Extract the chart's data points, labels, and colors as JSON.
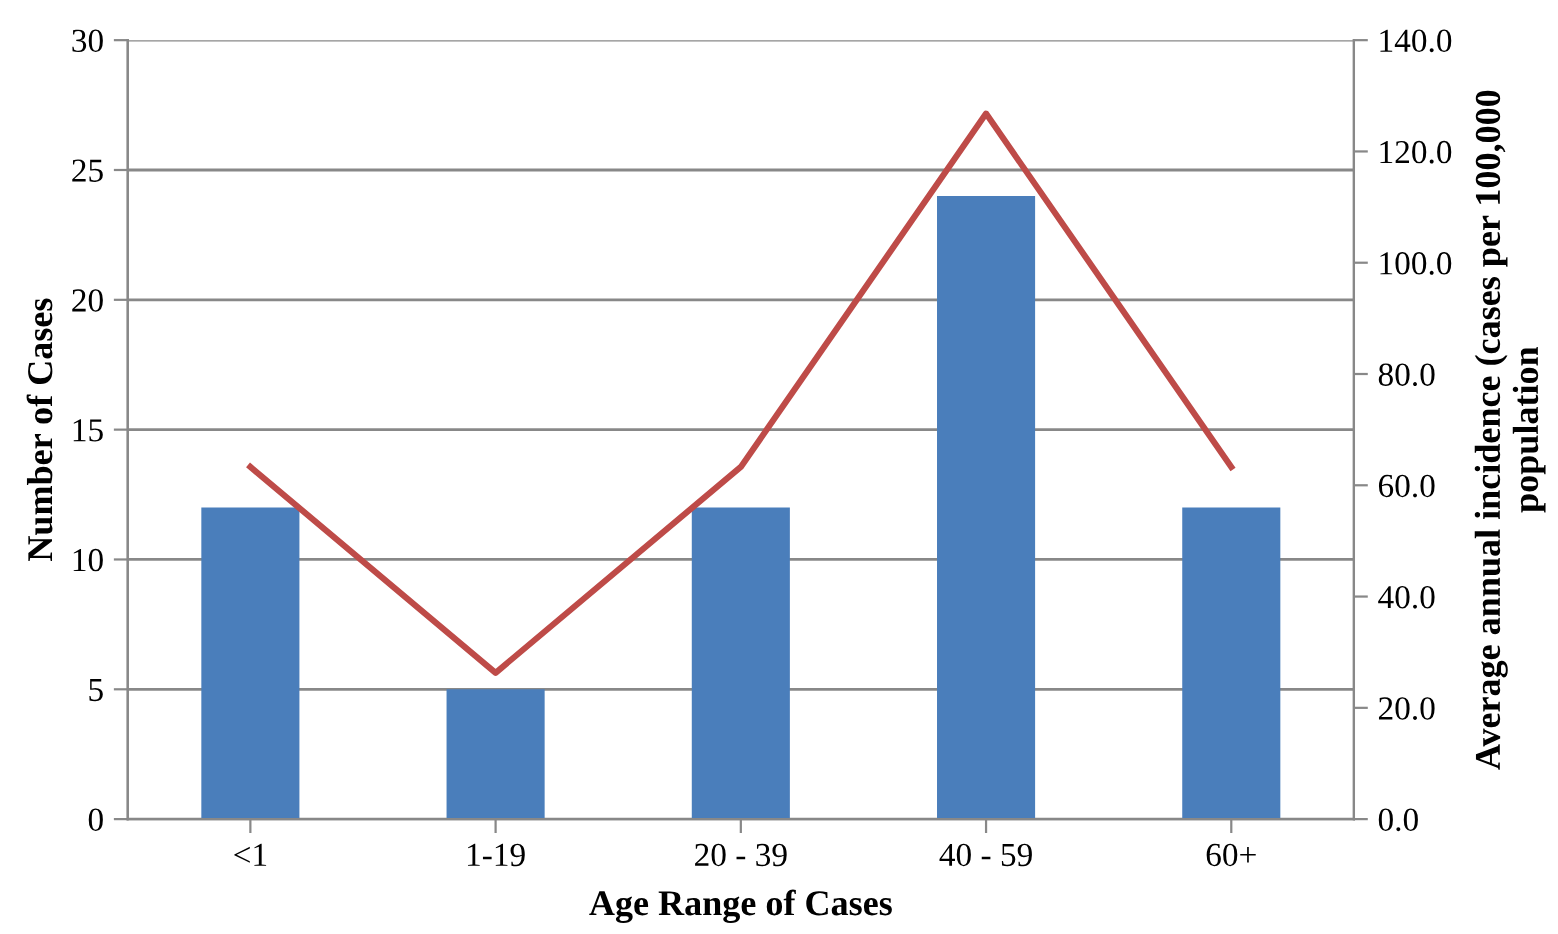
{
  "chart_data": {
    "type": "bar",
    "xlabel": "Age Range of Cases",
    "ylabel": "Number of Cases",
    "y2label": "Average annual incidence (cases per 100,000\npopulation",
    "categories": [
      "<1",
      "1-19",
      "20 - 39",
      "40 - 59",
      "60+"
    ],
    "series": [
      {
        "color": "#4a7ebb",
        "values": [
          12,
          5,
          12,
          24,
          12
        ]
      },
      {
        "type": "line",
        "axis": "y2",
        "color": "#be4b48",
        "values": [
          63.3,
          26.3,
          63.3,
          126.8,
          63.3
        ],
        "marker": "none",
        "line_style": "solid"
      }
    ],
    "ylim": [
      0,
      30
    ],
    "yticks": [
      0,
      5,
      10,
      15,
      20,
      25,
      30
    ],
    "y2lim": [
      0,
      140
    ],
    "y2ticks": [
      {
        "value": 0,
        "label": "0.0"
      },
      {
        "value": 20,
        "label": "20.0"
      },
      {
        "value": 40,
        "label": "40.0"
      },
      {
        "value": 60,
        "label": "60.0"
      },
      {
        "value": 80,
        "label": "80.0"
      },
      {
        "value": 100,
        "label": "100.0"
      },
      {
        "value": 120,
        "label": "120.0"
      },
      {
        "value": 140,
        "label": "140.0"
      }
    ],
    "grid": "y",
    "legend": false
  }
}
